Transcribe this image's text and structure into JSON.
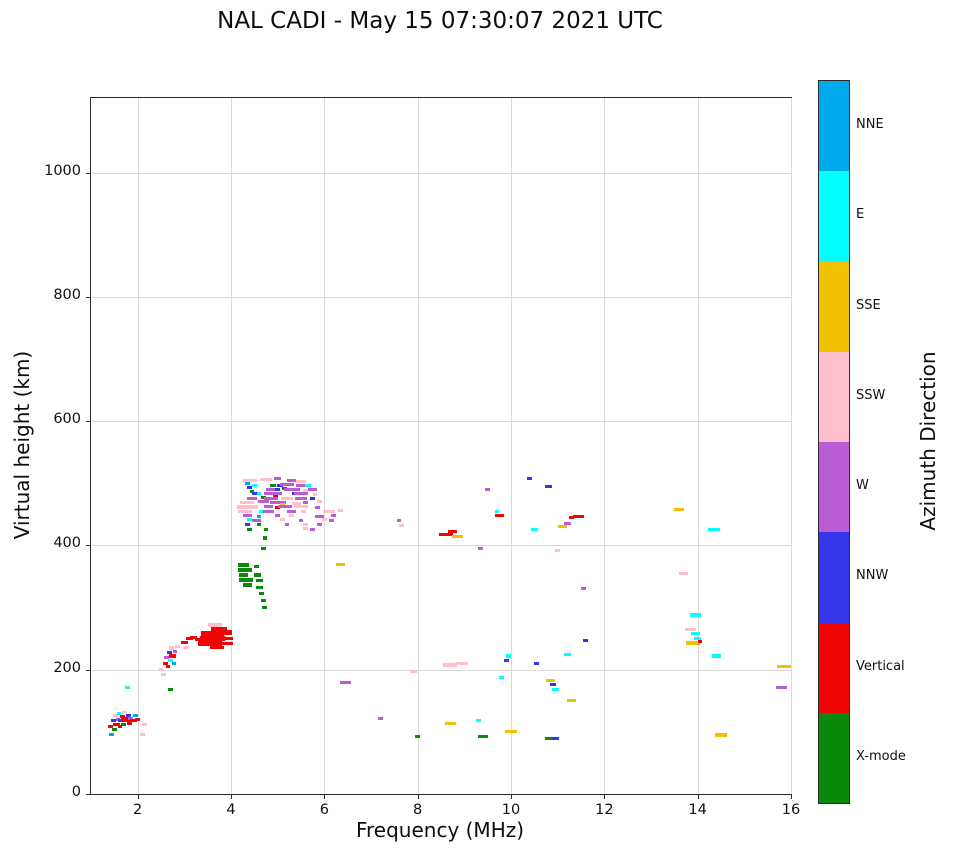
{
  "title": "NAL CADI - May 15 07:30:07 2021 UTC",
  "chart_data": {
    "type": "scatter",
    "title": "NAL CADI - May 15 07:30:07 2021 UTC",
    "xlabel": "Frequency (MHz)",
    "ylabel": "Virtual height (km)",
    "xlim": [
      1,
      16
    ],
    "ylim": [
      0,
      1120
    ],
    "xticks": [
      2,
      4,
      6,
      8,
      10,
      12,
      14,
      16
    ],
    "yticks": [
      0,
      200,
      400,
      600,
      800,
      1000
    ],
    "grid": true,
    "legend_position": "right-colorbar",
    "colorbar": {
      "label": "Azimuth Direction",
      "categories": [
        {
          "label": "NNE",
          "color": "#00A8EC"
        },
        {
          "label": "E",
          "color": "#00FFFF"
        },
        {
          "label": "SSE",
          "color": "#F2C200"
        },
        {
          "label": "SSW",
          "color": "#FFC0CD"
        },
        {
          "label": "W",
          "color": "#BB5CD6"
        },
        {
          "label": "NNW",
          "color": "#3535EA"
        },
        {
          "label": "Vertical",
          "color": "#F00505"
        },
        {
          "label": "X-mode",
          "color": "#0A8A0A"
        }
      ]
    },
    "points": [
      {
        "x": 1.42,
        "y": 108,
        "c": "Vertical"
      },
      {
        "x": 1.44,
        "y": 96,
        "c": "NNE"
      },
      {
        "x": 1.48,
        "y": 118,
        "c": "NNW"
      },
      {
        "x": 1.5,
        "y": 104,
        "c": "X-mode"
      },
      {
        "x": 1.52,
        "y": 126,
        "c": "SSW"
      },
      {
        "x": 1.55,
        "y": 112,
        "c": "Vertical",
        "w": 0.15
      },
      {
        "x": 1.58,
        "y": 120,
        "c": "W"
      },
      {
        "x": 1.6,
        "y": 130,
        "c": "E"
      },
      {
        "x": 1.62,
        "y": 108,
        "c": "Vertical"
      },
      {
        "x": 1.65,
        "y": 118,
        "c": "NNW",
        "w": 0.15
      },
      {
        "x": 1.68,
        "y": 124,
        "c": "Vertical"
      },
      {
        "x": 1.7,
        "y": 112,
        "c": "X-mode"
      },
      {
        "x": 1.72,
        "y": 131,
        "c": "SSW"
      },
      {
        "x": 1.75,
        "y": 120,
        "c": "Vertical",
        "w": 0.2,
        "h": 8
      },
      {
        "x": 1.78,
        "y": 172,
        "c": "E"
      },
      {
        "x": 1.8,
        "y": 126,
        "c": "NNW"
      },
      {
        "x": 1.82,
        "y": 114,
        "c": "Vertical"
      },
      {
        "x": 1.85,
        "y": 122,
        "c": "W"
      },
      {
        "x": 1.9,
        "y": 118,
        "c": "Vertical",
        "w": 0.15
      },
      {
        "x": 1.95,
        "y": 126,
        "c": "NNE"
      },
      {
        "x": 2.0,
        "y": 120,
        "c": "Vertical"
      },
      {
        "x": 2.1,
        "y": 96,
        "c": "SSW"
      },
      {
        "x": 2.15,
        "y": 112,
        "c": "SSW"
      },
      {
        "x": 2.5,
        "y": 200,
        "c": "SSW"
      },
      {
        "x": 2.55,
        "y": 192,
        "c": "SSW"
      },
      {
        "x": 2.6,
        "y": 210,
        "c": "Vertical"
      },
      {
        "x": 2.62,
        "y": 220,
        "c": "W"
      },
      {
        "x": 2.65,
        "y": 205,
        "c": "Vertical"
      },
      {
        "x": 2.68,
        "y": 228,
        "c": "NNW"
      },
      {
        "x": 2.7,
        "y": 215,
        "c": "E"
      },
      {
        "x": 2.7,
        "y": 168,
        "c": "X-mode"
      },
      {
        "x": 2.72,
        "y": 235,
        "c": "SSW"
      },
      {
        "x": 2.75,
        "y": 222,
        "c": "Vertical",
        "w": 0.15
      },
      {
        "x": 2.78,
        "y": 210,
        "c": "NNE"
      },
      {
        "x": 2.8,
        "y": 230,
        "c": "W"
      },
      {
        "x": 2.85,
        "y": 238,
        "c": "SSW"
      },
      {
        "x": 3.0,
        "y": 244,
        "c": "Vertical",
        "w": 0.15
      },
      {
        "x": 3.05,
        "y": 236,
        "c": "SSW"
      },
      {
        "x": 3.1,
        "y": 250,
        "c": "Vertical",
        "w": 0.15
      },
      {
        "x": 3.2,
        "y": 252,
        "c": "Vertical",
        "w": 0.15
      },
      {
        "x": 3.3,
        "y": 248,
        "c": "Vertical",
        "w": 0.15
      },
      {
        "x": 3.55,
        "y": 242,
        "c": "Vertical",
        "w": 0.5,
        "h": 7
      },
      {
        "x": 3.6,
        "y": 250,
        "c": "Vertical",
        "w": 0.55,
        "h": 7
      },
      {
        "x": 3.6,
        "y": 258,
        "c": "Vertical",
        "w": 0.5,
        "h": 7
      },
      {
        "x": 3.75,
        "y": 265,
        "c": "Vertical",
        "w": 0.35,
        "h": 6
      },
      {
        "x": 3.65,
        "y": 272,
        "c": "SSW",
        "w": 0.3
      },
      {
        "x": 3.9,
        "y": 260,
        "c": "Vertical",
        "w": 0.25,
        "h": 8
      },
      {
        "x": 3.9,
        "y": 242,
        "c": "Vertical",
        "w": 0.3,
        "h": 6
      },
      {
        "x": 3.95,
        "y": 250,
        "c": "Vertical",
        "w": 0.2,
        "h": 6
      },
      {
        "x": 3.7,
        "y": 236,
        "c": "Vertical",
        "w": 0.3,
        "h": 5
      },
      {
        "x": 4.27,
        "y": 368,
        "c": "X-mode",
        "w": 0.22,
        "h": 6
      },
      {
        "x": 4.3,
        "y": 360,
        "c": "X-mode",
        "w": 0.28,
        "h": 6
      },
      {
        "x": 4.27,
        "y": 352,
        "c": "X-mode",
        "w": 0.2,
        "h": 6
      },
      {
        "x": 4.32,
        "y": 344,
        "c": "X-mode",
        "w": 0.3,
        "h": 6
      },
      {
        "x": 4.35,
        "y": 336,
        "c": "X-mode",
        "w": 0.2,
        "h": 6
      },
      {
        "x": 4.55,
        "y": 366,
        "c": "X-mode",
        "w": 0.12
      },
      {
        "x": 4.57,
        "y": 352,
        "c": "X-mode",
        "w": 0.15,
        "h": 6
      },
      {
        "x": 4.6,
        "y": 344,
        "c": "X-mode",
        "w": 0.15
      },
      {
        "x": 4.62,
        "y": 332,
        "c": "X-mode",
        "w": 0.15
      },
      {
        "x": 4.65,
        "y": 322,
        "c": "X-mode"
      },
      {
        "x": 4.7,
        "y": 312,
        "c": "X-mode"
      },
      {
        "x": 4.72,
        "y": 300,
        "c": "X-mode"
      },
      {
        "x": 4.7,
        "y": 395,
        "c": "X-mode"
      },
      {
        "x": 4.73,
        "y": 412,
        "c": "X-mode"
      },
      {
        "x": 4.75,
        "y": 425,
        "c": "X-mode"
      },
      {
        "x": 4.4,
        "y": 505,
        "c": "SSW",
        "w": 0.3
      },
      {
        "x": 4.75,
        "y": 506,
        "c": "SSW",
        "w": 0.25
      },
      {
        "x": 5.0,
        "y": 507,
        "c": "W",
        "w": 0.15
      },
      {
        "x": 5.3,
        "y": 505,
        "c": "W",
        "w": 0.2
      },
      {
        "x": 5.5,
        "y": 503,
        "c": "SSW",
        "w": 0.2
      },
      {
        "x": 4.35,
        "y": 500,
        "c": "NNE"
      },
      {
        "x": 4.5,
        "y": 497,
        "c": "E"
      },
      {
        "x": 4.9,
        "y": 497,
        "c": "X-mode",
        "w": 0.12
      },
      {
        "x": 5.05,
        "y": 497,
        "c": "NNW",
        "w": 0.12
      },
      {
        "x": 5.2,
        "y": 498,
        "c": "W",
        "w": 0.3
      },
      {
        "x": 5.5,
        "y": 496,
        "c": "W",
        "w": 0.2
      },
      {
        "x": 5.65,
        "y": 497,
        "c": "E",
        "w": 0.12
      },
      {
        "x": 4.4,
        "y": 493,
        "c": "NNW"
      },
      {
        "x": 4.45,
        "y": 487,
        "c": "X-mode"
      },
      {
        "x": 4.85,
        "y": 490,
        "c": "W",
        "w": 0.2
      },
      {
        "x": 5.0,
        "y": 490,
        "c": "NNW"
      },
      {
        "x": 5.15,
        "y": 491,
        "c": "X-mode"
      },
      {
        "x": 5.3,
        "y": 490,
        "c": "W",
        "w": 0.35
      },
      {
        "x": 5.6,
        "y": 489,
        "c": "SSW"
      },
      {
        "x": 5.75,
        "y": 490,
        "c": "W",
        "w": 0.2
      },
      {
        "x": 4.5,
        "y": 483,
        "c": "NNW"
      },
      {
        "x": 4.6,
        "y": 484,
        "c": "E"
      },
      {
        "x": 4.9,
        "y": 483,
        "c": "W",
        "w": 0.4
      },
      {
        "x": 5.35,
        "y": 483,
        "c": "NNW"
      },
      {
        "x": 5.5,
        "y": 484,
        "c": "W",
        "w": 0.3
      },
      {
        "x": 5.8,
        "y": 482,
        "c": "SSW"
      },
      {
        "x": 4.95,
        "y": 478,
        "c": "Vertical"
      },
      {
        "x": 4.45,
        "y": 476,
        "c": "W",
        "w": 0.2
      },
      {
        "x": 4.7,
        "y": 477,
        "c": "X-mode"
      },
      {
        "x": 4.85,
        "y": 476,
        "c": "W",
        "w": 0.3
      },
      {
        "x": 5.2,
        "y": 476,
        "c": "SSW",
        "w": 0.25
      },
      {
        "x": 5.5,
        "y": 475,
        "c": "W",
        "w": 0.25
      },
      {
        "x": 5.75,
        "y": 476,
        "c": "NNW"
      },
      {
        "x": 4.35,
        "y": 469,
        "c": "SSW",
        "w": 0.3
      },
      {
        "x": 4.7,
        "y": 470,
        "c": "W",
        "w": 0.25
      },
      {
        "x": 5.0,
        "y": 469,
        "c": "W",
        "w": 0.35
      },
      {
        "x": 5.1,
        "y": 466,
        "c": "SSE"
      },
      {
        "x": 5.4,
        "y": 468,
        "c": "SSW",
        "w": 0.2
      },
      {
        "x": 5.6,
        "y": 469,
        "c": "W"
      },
      {
        "x": 5.9,
        "y": 470,
        "c": "SSW"
      },
      {
        "x": 4.35,
        "y": 462,
        "c": "SSW",
        "w": 0.45,
        "h": 7
      },
      {
        "x": 4.8,
        "y": 462,
        "c": "W",
        "w": 0.2
      },
      {
        "x": 5.0,
        "y": 461,
        "c": "Vertical"
      },
      {
        "x": 5.15,
        "y": 462,
        "c": "W",
        "w": 0.3
      },
      {
        "x": 5.5,
        "y": 462,
        "c": "SSW",
        "w": 0.3
      },
      {
        "x": 5.85,
        "y": 461,
        "c": "W"
      },
      {
        "x": 4.3,
        "y": 455,
        "c": "SSW",
        "w": 0.3
      },
      {
        "x": 4.65,
        "y": 455,
        "c": "E"
      },
      {
        "x": 4.8,
        "y": 455,
        "c": "W",
        "w": 0.25
      },
      {
        "x": 5.3,
        "y": 454,
        "c": "W",
        "w": 0.2
      },
      {
        "x": 5.55,
        "y": 455,
        "c": "SSW"
      },
      {
        "x": 6.1,
        "y": 455,
        "c": "SSW",
        "w": 0.25
      },
      {
        "x": 6.35,
        "y": 456,
        "c": "SSW"
      },
      {
        "x": 4.35,
        "y": 448,
        "c": "W",
        "w": 0.2
      },
      {
        "x": 4.6,
        "y": 447,
        "c": "NNE"
      },
      {
        "x": 5.0,
        "y": 448,
        "c": "W"
      },
      {
        "x": 5.3,
        "y": 448,
        "c": "SSW"
      },
      {
        "x": 5.9,
        "y": 447,
        "c": "W",
        "w": 0.2
      },
      {
        "x": 6.2,
        "y": 448,
        "c": "W"
      },
      {
        "x": 4.4,
        "y": 441,
        "c": "E"
      },
      {
        "x": 4.55,
        "y": 440,
        "c": "W",
        "w": 0.2
      },
      {
        "x": 5.1,
        "y": 441,
        "c": "SSW"
      },
      {
        "x": 5.5,
        "y": 440,
        "c": "W"
      },
      {
        "x": 6.0,
        "y": 441,
        "c": "SSW"
      },
      {
        "x": 6.15,
        "y": 440,
        "c": "W"
      },
      {
        "x": 4.35,
        "y": 434,
        "c": "NNW"
      },
      {
        "x": 4.6,
        "y": 433,
        "c": "X-mode"
      },
      {
        "x": 5.2,
        "y": 434,
        "c": "W"
      },
      {
        "x": 5.6,
        "y": 433,
        "c": "SSW"
      },
      {
        "x": 5.9,
        "y": 434,
        "c": "W"
      },
      {
        "x": 4.4,
        "y": 426,
        "c": "X-mode"
      },
      {
        "x": 5.6,
        "y": 427,
        "c": "SSW"
      },
      {
        "x": 5.75,
        "y": 426,
        "c": "W"
      },
      {
        "x": 6.35,
        "y": 370,
        "c": "SSE",
        "w": 0.2
      },
      {
        "x": 6.45,
        "y": 180,
        "c": "W",
        "w": 0.25
      },
      {
        "x": 7.2,
        "y": 122,
        "c": "W"
      },
      {
        "x": 7.6,
        "y": 440,
        "c": "W"
      },
      {
        "x": 7.65,
        "y": 432,
        "c": "SSW"
      },
      {
        "x": 7.9,
        "y": 197,
        "c": "SSW",
        "w": 0.15
      },
      {
        "x": 8.0,
        "y": 92,
        "c": "X-mode"
      },
      {
        "x": 8.6,
        "y": 417,
        "c": "Vertical",
        "w": 0.3
      },
      {
        "x": 8.75,
        "y": 422,
        "c": "Vertical",
        "w": 0.2
      },
      {
        "x": 8.85,
        "y": 415,
        "c": "SSE",
        "w": 0.25
      },
      {
        "x": 8.7,
        "y": 208,
        "c": "SSW",
        "w": 0.3,
        "h": 6
      },
      {
        "x": 8.95,
        "y": 210,
        "c": "SSW",
        "w": 0.25,
        "h": 6
      },
      {
        "x": 8.7,
        "y": 114,
        "c": "SSE",
        "w": 0.25
      },
      {
        "x": 9.3,
        "y": 118,
        "c": "E"
      },
      {
        "x": 9.4,
        "y": 92,
        "c": "X-mode",
        "w": 0.2
      },
      {
        "x": 9.35,
        "y": 395,
        "c": "W"
      },
      {
        "x": 9.5,
        "y": 490,
        "c": "W"
      },
      {
        "x": 9.7,
        "y": 455,
        "c": "E"
      },
      {
        "x": 9.75,
        "y": 448,
        "c": "Vertical",
        "w": 0.2
      },
      {
        "x": 9.8,
        "y": 188,
        "c": "E"
      },
      {
        "x": 9.9,
        "y": 215,
        "c": "NNW"
      },
      {
        "x": 9.95,
        "y": 222,
        "c": "E"
      },
      {
        "x": 10.0,
        "y": 100,
        "c": "SSE",
        "w": 0.25
      },
      {
        "x": 10.4,
        "y": 508,
        "c": "NNW"
      },
      {
        "x": 10.5,
        "y": 425,
        "c": "E",
        "w": 0.15
      },
      {
        "x": 10.55,
        "y": 210,
        "c": "NNW"
      },
      {
        "x": 10.8,
        "y": 495,
        "c": "NNW",
        "w": 0.15
      },
      {
        "x": 10.85,
        "y": 183,
        "c": "SSE",
        "w": 0.2
      },
      {
        "x": 10.9,
        "y": 176,
        "c": "NNW",
        "w": 0.12
      },
      {
        "x": 10.95,
        "y": 168,
        "c": "E",
        "w": 0.15
      },
      {
        "x": 10.8,
        "y": 90,
        "c": "X-mode",
        "w": 0.15
      },
      {
        "x": 10.95,
        "y": 90,
        "c": "NNW",
        "w": 0.15
      },
      {
        "x": 11.0,
        "y": 392,
        "c": "SSW"
      },
      {
        "x": 11.1,
        "y": 430,
        "c": "SSE",
        "w": 0.2
      },
      {
        "x": 11.2,
        "y": 436,
        "c": "W",
        "w": 0.15
      },
      {
        "x": 11.3,
        "y": 445,
        "c": "Vertical",
        "w": 0.12
      },
      {
        "x": 11.45,
        "y": 447,
        "c": "Vertical",
        "w": 0.25
      },
      {
        "x": 11.2,
        "y": 225,
        "c": "E",
        "w": 0.15
      },
      {
        "x": 11.3,
        "y": 150,
        "c": "SSE",
        "w": 0.2
      },
      {
        "x": 11.55,
        "y": 330,
        "c": "W"
      },
      {
        "x": 11.6,
        "y": 247,
        "c": "NNW",
        "w": 0.12
      },
      {
        "x": 13.6,
        "y": 458,
        "c": "SSE",
        "w": 0.2
      },
      {
        "x": 13.7,
        "y": 355,
        "c": "SSW",
        "w": 0.2
      },
      {
        "x": 13.95,
        "y": 288,
        "c": "E",
        "w": 0.25
      },
      {
        "x": 13.85,
        "y": 265,
        "c": "SSW",
        "w": 0.25
      },
      {
        "x": 13.95,
        "y": 258,
        "c": "E",
        "w": 0.2
      },
      {
        "x": 14.0,
        "y": 250,
        "c": "E",
        "w": 0.15
      },
      {
        "x": 13.9,
        "y": 243,
        "c": "SSE",
        "w": 0.3
      },
      {
        "x": 14.05,
        "y": 246,
        "c": "Vertical",
        "w": 0.1
      },
      {
        "x": 14.35,
        "y": 425,
        "c": "E",
        "w": 0.25
      },
      {
        "x": 14.4,
        "y": 222,
        "c": "E",
        "w": 0.2
      },
      {
        "x": 14.5,
        "y": 95,
        "c": "SSE",
        "w": 0.25
      },
      {
        "x": 15.85,
        "y": 205,
        "c": "SSE",
        "w": 0.3
      },
      {
        "x": 15.8,
        "y": 172,
        "c": "W",
        "w": 0.25
      }
    ]
  }
}
